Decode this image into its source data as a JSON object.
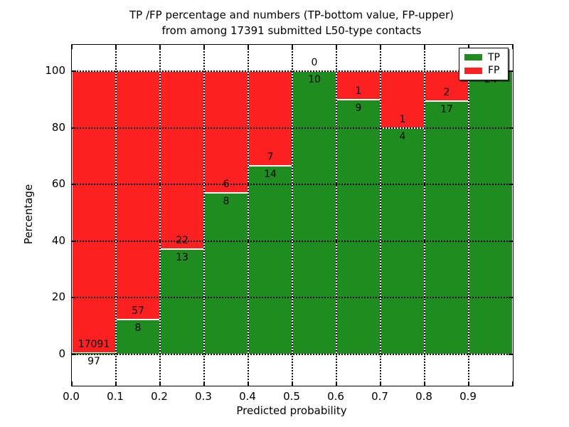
{
  "title": {
    "line1": "TP /FP percentage and numbers (TP-bottom value, FP-upper)",
    "line2": "from among 17391 submitted L50-type contacts"
  },
  "axes": {
    "x_label": "Predicted probability",
    "y_label": "Percentage",
    "x_ticks": [
      "0.0",
      "0.1",
      "0.2",
      "0.3",
      "0.4",
      "0.5",
      "0.6",
      "0.7",
      "0.8",
      "0.9"
    ],
    "y_ticks": [
      "0",
      "20",
      "40",
      "60",
      "80",
      "100"
    ]
  },
  "legend": {
    "items": [
      {
        "label": "TP",
        "color": "#1f8c1f"
      },
      {
        "label": "FP",
        "color": "#fd2020"
      }
    ]
  },
  "chart_data": {
    "type": "bar",
    "stacked": true,
    "normalization": "percent_of_bin_total",
    "title": "TP /FP percentage and numbers (TP-bottom value, FP-upper) from among 17391 submitted L50-type contacts",
    "xlabel": "Predicted probability",
    "ylabel": "Percentage",
    "total_contacts": 17391,
    "bin_edges": [
      0.0,
      0.1,
      0.2,
      0.3,
      0.4,
      0.5,
      0.6,
      0.7,
      0.8,
      0.9,
      1.0
    ],
    "series": [
      {
        "name": "TP",
        "color": "#1f8c1f",
        "values": [
          97,
          8,
          13,
          8,
          14,
          10,
          9,
          4,
          17,
          24
        ]
      },
      {
        "name": "FP",
        "color": "#fd2020",
        "values": [
          17091,
          57,
          22,
          6,
          7,
          0,
          1,
          1,
          2,
          0
        ]
      }
    ],
    "tp_percent": [
      0.56,
      12.31,
      37.14,
      57.14,
      66.67,
      100,
      90,
      80,
      89.47,
      100
    ],
    "bar_labels": [
      {
        "tp": "97",
        "fp": "17091"
      },
      {
        "tp": "8",
        "fp": "57"
      },
      {
        "tp": "13",
        "fp": "22"
      },
      {
        "tp": "8",
        "fp": "6"
      },
      {
        "tp": "14",
        "fp": "7"
      },
      {
        "tp": "10",
        "fp": "0"
      },
      {
        "tp": "9",
        "fp": "1"
      },
      {
        "tp": "4",
        "fp": "1"
      },
      {
        "tp": "17",
        "fp": "2"
      },
      {
        "tp": "24",
        "fp": ""
      }
    ],
    "grid": true,
    "legend_position": "upper right",
    "ylim_shown": [
      0,
      100
    ]
  }
}
